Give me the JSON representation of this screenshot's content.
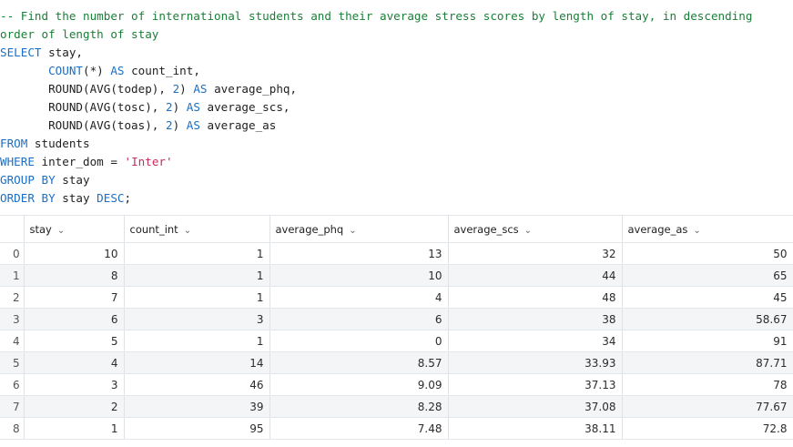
{
  "editor": {
    "lines": [
      {
        "parts": [
          {
            "cls": "comment",
            "text": "-- Find the number of international students and their average stress scores by length of stay, in descending"
          }
        ]
      },
      {
        "parts": [
          {
            "cls": "comment",
            "text": "order of length of stay"
          }
        ]
      },
      {
        "parts": [
          {
            "cls": "kw",
            "text": "SELECT"
          },
          {
            "cls": "",
            "text": " stay,"
          }
        ]
      },
      {
        "parts": [
          {
            "cls": "",
            "text": "       "
          },
          {
            "cls": "kw",
            "text": "COUNT"
          },
          {
            "cls": "",
            "text": "(*) "
          },
          {
            "cls": "kw",
            "text": "AS"
          },
          {
            "cls": "",
            "text": " count_int,"
          }
        ]
      },
      {
        "parts": [
          {
            "cls": "",
            "text": "       ROUND(AVG(todep), "
          },
          {
            "cls": "num",
            "text": "2"
          },
          {
            "cls": "",
            "text": ") "
          },
          {
            "cls": "kw",
            "text": "AS"
          },
          {
            "cls": "",
            "text": " average_phq,"
          }
        ]
      },
      {
        "parts": [
          {
            "cls": "",
            "text": "       ROUND(AVG(tosc), "
          },
          {
            "cls": "num",
            "text": "2"
          },
          {
            "cls": "",
            "text": ") "
          },
          {
            "cls": "kw",
            "text": "AS"
          },
          {
            "cls": "",
            "text": " average_scs,"
          }
        ]
      },
      {
        "parts": [
          {
            "cls": "",
            "text": "       ROUND(AVG(toas), "
          },
          {
            "cls": "num",
            "text": "2"
          },
          {
            "cls": "",
            "text": ") "
          },
          {
            "cls": "kw",
            "text": "AS"
          },
          {
            "cls": "",
            "text": " average_as"
          }
        ]
      },
      {
        "parts": [
          {
            "cls": "kw",
            "text": "FROM"
          },
          {
            "cls": "",
            "text": " students"
          }
        ]
      },
      {
        "parts": [
          {
            "cls": "kw",
            "text": "WHERE"
          },
          {
            "cls": "",
            "text": " inter_dom = "
          },
          {
            "cls": "str",
            "text": "'Inter'"
          }
        ]
      },
      {
        "parts": [
          {
            "cls": "kw",
            "text": "GROUP BY"
          },
          {
            "cls": "",
            "text": " stay"
          }
        ]
      },
      {
        "parts": [
          {
            "cls": "kw",
            "text": "ORDER BY"
          },
          {
            "cls": "",
            "text": " stay "
          },
          {
            "cls": "kw",
            "text": "DESC"
          },
          {
            "cls": "",
            "text": ";"
          }
        ]
      }
    ]
  },
  "results": {
    "columns": [
      "",
      "stay",
      "count_int",
      "average_phq",
      "average_scs",
      "average_as"
    ],
    "sort_icon": "chevron-down-icon",
    "rows": [
      [
        "0",
        "10",
        "1",
        "13",
        "32",
        "50"
      ],
      [
        "1",
        "8",
        "1",
        "10",
        "44",
        "65"
      ],
      [
        "2",
        "7",
        "1",
        "4",
        "48",
        "45"
      ],
      [
        "3",
        "6",
        "3",
        "6",
        "38",
        "58.67"
      ],
      [
        "4",
        "5",
        "1",
        "0",
        "34",
        "91"
      ],
      [
        "5",
        "4",
        "14",
        "8.57",
        "33.93",
        "87.71"
      ],
      [
        "6",
        "3",
        "46",
        "9.09",
        "37.13",
        "78"
      ],
      [
        "7",
        "2",
        "39",
        "8.28",
        "37.08",
        "77.67"
      ],
      [
        "8",
        "1",
        "95",
        "7.48",
        "38.11",
        "72.8"
      ]
    ]
  },
  "colors": {
    "comment": "#1a7f37",
    "keyword": "#1a6fc4",
    "string": "#c62d5b",
    "row_stripe": "#f4f5f7"
  }
}
